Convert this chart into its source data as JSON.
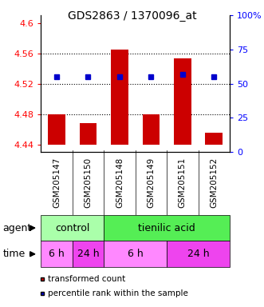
{
  "title": "GDS2863 / 1370096_at",
  "samples": [
    "GSM205147",
    "GSM205150",
    "GSM205148",
    "GSM205149",
    "GSM205151",
    "GSM205152"
  ],
  "bar_bottoms": [
    4.44,
    4.44,
    4.44,
    4.44,
    4.44,
    4.44
  ],
  "bar_tops": [
    4.48,
    4.468,
    4.565,
    4.48,
    4.553,
    4.455
  ],
  "percentile_values": [
    4.529,
    4.529,
    4.529,
    4.529,
    4.532,
    4.529
  ],
  "ylim": [
    4.43,
    4.61
  ],
  "yticks_left": [
    4.44,
    4.48,
    4.52,
    4.56,
    4.6
  ],
  "yticks_right": [
    0,
    25,
    50,
    75,
    100
  ],
  "yticks_right_labels": [
    "0",
    "25",
    "50",
    "75",
    "100%"
  ],
  "bar_color": "#cc0000",
  "percentile_color": "#0000cc",
  "agent_control_color": "#aaffaa",
  "agent_acid_color": "#55ee55",
  "time_light_color": "#ff88ff",
  "time_dark_color": "#ee44ee",
  "xlabel_bg_color": "#cccccc",
  "legend_red_label": "transformed count",
  "legend_blue_label": "percentile rank within the sample",
  "agent_label": "agent",
  "time_label": "time",
  "control_label": "control",
  "acid_label": "tienilic acid",
  "bar_width": 0.55,
  "fig_width": 3.31,
  "fig_height": 3.84,
  "dpi": 100
}
